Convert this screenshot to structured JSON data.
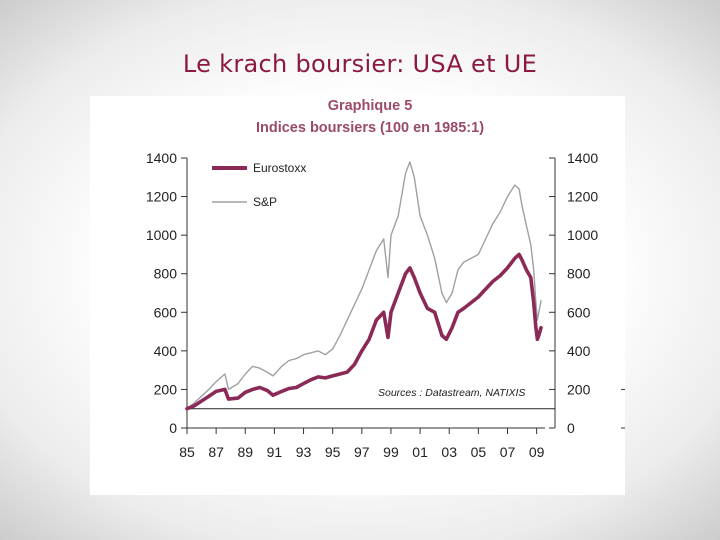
{
  "slide": {
    "title": "Le krach boursier: USA et UE"
  },
  "chart_data": {
    "type": "line",
    "title": "Graphique 5",
    "subtitle": "Indices boursiers (100 en 1985:1)",
    "source_note": "Sources : Datastream, NATIXIS",
    "xlim": [
      1985,
      2009.3
    ],
    "ylim": [
      0,
      1400
    ],
    "yticks": [
      0,
      200,
      400,
      600,
      800,
      1000,
      1200,
      1400
    ],
    "xtick_values": [
      1985,
      1987,
      1989,
      1991,
      1993,
      1995,
      1997,
      1999,
      2001,
      2003,
      2005,
      2007,
      2009
    ],
    "xtick_labels": [
      "85",
      "87",
      "89",
      "91",
      "93",
      "95",
      "97",
      "99",
      "01",
      "03",
      "05",
      "07",
      "09"
    ],
    "reference_line": 100,
    "legend_position": "top-left",
    "grid": false,
    "series": [
      {
        "name": "Eurostoxx",
        "color": "#8b2a56",
        "x": [
          1985.0,
          1985.5,
          1986.0,
          1986.5,
          1987.0,
          1987.6,
          1987.85,
          1988.5,
          1989.0,
          1989.5,
          1990.0,
          1990.5,
          1990.9,
          1991.5,
          1992.0,
          1992.5,
          1993.0,
          1993.5,
          1994.0,
          1994.5,
          1995.0,
          1995.5,
          1996.0,
          1996.5,
          1997.0,
          1997.5,
          1998.0,
          1998.5,
          1998.8,
          1999.0,
          1999.5,
          2000.0,
          2000.3,
          2000.6,
          2001.0,
          2001.5,
          2002.0,
          2002.5,
          2002.8,
          2003.2,
          2003.6,
          2004.0,
          2004.5,
          2005.0,
          2005.5,
          2006.0,
          2006.5,
          2007.0,
          2007.5,
          2007.8,
          2008.0,
          2008.3,
          2008.6,
          2008.8,
          2008.95,
          2009.05,
          2009.15,
          2009.3
        ],
        "y": [
          100,
          115,
          140,
          165,
          190,
          200,
          150,
          155,
          185,
          200,
          210,
          195,
          170,
          190,
          205,
          210,
          230,
          250,
          265,
          260,
          270,
          280,
          290,
          330,
          400,
          460,
          560,
          600,
          470,
          600,
          700,
          800,
          830,
          780,
          700,
          620,
          600,
          480,
          460,
          520,
          600,
          620,
          650,
          680,
          720,
          760,
          790,
          830,
          880,
          900,
          870,
          820,
          780,
          650,
          520,
          460,
          480,
          520
        ]
      },
      {
        "name": "S&P",
        "color": "#a0a0a0",
        "x": [
          1985.0,
          1985.5,
          1986.0,
          1986.5,
          1987.0,
          1987.6,
          1987.85,
          1988.5,
          1989.0,
          1989.5,
          1990.0,
          1990.5,
          1990.9,
          1991.5,
          1992.0,
          1992.5,
          1993.0,
          1993.5,
          1994.0,
          1994.5,
          1995.0,
          1995.5,
          1996.0,
          1996.5,
          1997.0,
          1997.5,
          1998.0,
          1998.5,
          1998.8,
          1999.0,
          1999.5,
          2000.0,
          2000.3,
          2000.6,
          2001.0,
          2001.5,
          2002.0,
          2002.5,
          2002.8,
          2003.2,
          2003.6,
          2004.0,
          2004.5,
          2005.0,
          2005.5,
          2006.0,
          2006.5,
          2007.0,
          2007.5,
          2007.8,
          2008.0,
          2008.3,
          2008.6,
          2008.8,
          2008.95,
          2009.05,
          2009.15,
          2009.3
        ],
        "y": [
          100,
          130,
          165,
          200,
          240,
          280,
          200,
          230,
          280,
          320,
          310,
          290,
          270,
          320,
          350,
          360,
          380,
          390,
          400,
          380,
          410,
          480,
          560,
          640,
          720,
          820,
          920,
          980,
          780,
          1000,
          1100,
          1320,
          1380,
          1300,
          1100,
          1000,
          880,
          700,
          650,
          700,
          820,
          860,
          880,
          900,
          980,
          1060,
          1120,
          1200,
          1260,
          1240,
          1150,
          1050,
          950,
          820,
          650,
          560,
          600,
          660
        ]
      }
    ]
  }
}
